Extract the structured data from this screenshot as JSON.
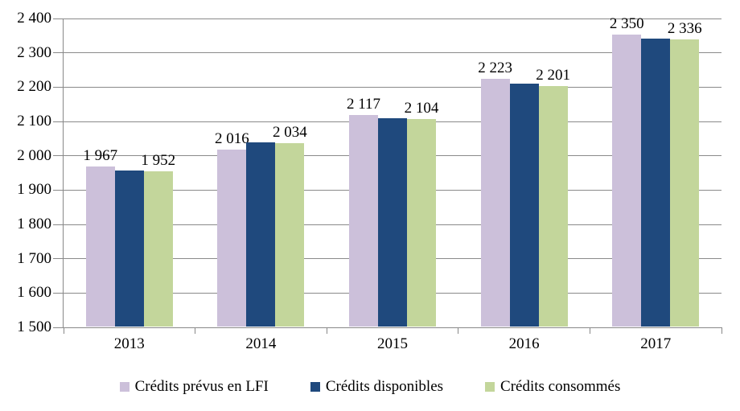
{
  "chart_data": {
    "type": "bar",
    "categories": [
      "2013",
      "2014",
      "2015",
      "2016",
      "2017"
    ],
    "series": [
      {
        "name": "Crédits prévus en LFI",
        "color": "#ccc0da",
        "values": [
          1967,
          2016,
          2117,
          2223,
          2350
        ],
        "labels": [
          "1 967",
          "2 016",
          "2 117",
          "2 223",
          "2 350"
        ]
      },
      {
        "name": "Crédits disponibles",
        "color": "#1f497d",
        "values": [
          1955,
          2036,
          2108,
          2209,
          2340
        ],
        "labels": [
          "",
          "",
          "",
          "",
          ""
        ]
      },
      {
        "name": "Crédits consommés",
        "color": "#c3d69b",
        "values": [
          1952,
          2034,
          2104,
          2201,
          2336
        ],
        "labels": [
          "1 952",
          "2 034",
          "2 104",
          "2 201",
          "2 336"
        ]
      }
    ],
    "title": "",
    "xlabel": "",
    "ylabel": "",
    "ylim": [
      1500,
      2400
    ],
    "ytick_step": 100,
    "ytick_values": [
      1500,
      1600,
      1700,
      1800,
      1900,
      2000,
      2100,
      2200,
      2300,
      2400
    ],
    "ytick_labels": [
      "1 500",
      "1 600",
      "1 700",
      "1 800",
      "1 900",
      "2 000",
      "2 100",
      "2 200",
      "2 300",
      "2 400"
    ],
    "grid": true,
    "legend_position": "bottom"
  },
  "colors": {
    "background": "#ffffff",
    "gridline": "#8a8a8a",
    "axis": "#888888",
    "text": "#000000"
  }
}
